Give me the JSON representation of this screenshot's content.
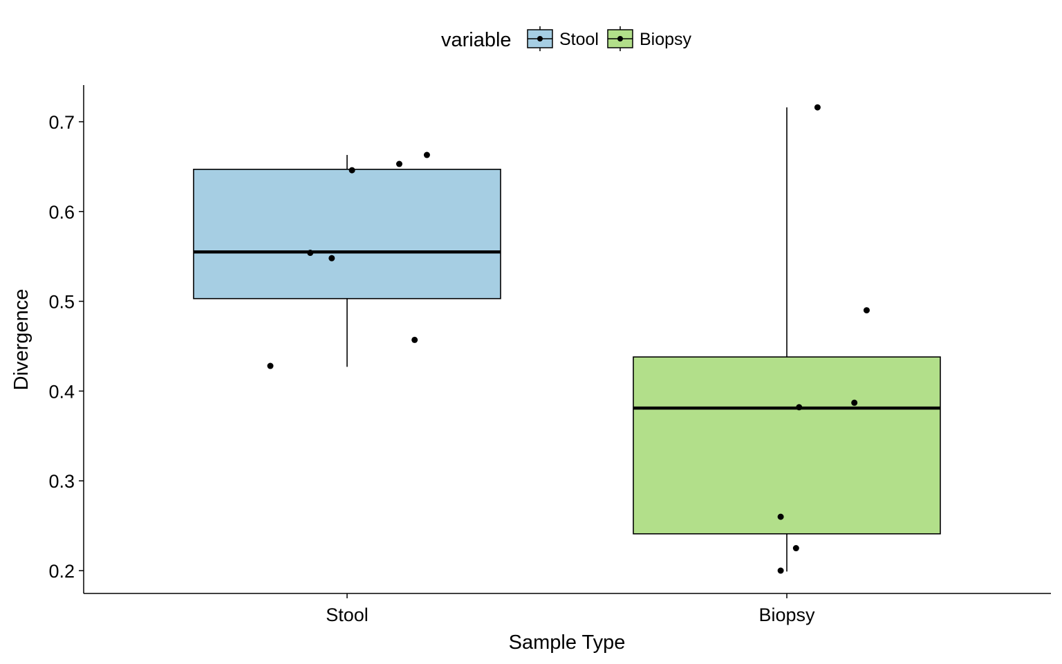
{
  "chart_data": {
    "type": "box",
    "xlabel": "Sample Type",
    "ylabel": "Divergence",
    "ylim": [
      0.175,
      0.742
    ],
    "yticks": [
      0.2,
      0.3,
      0.4,
      0.5,
      0.6,
      0.7
    ],
    "ytick_labels": [
      "0.2",
      "0.3",
      "0.4",
      "0.5",
      "0.6",
      "0.7"
    ],
    "grid": false,
    "legend": {
      "title": "variable",
      "position": "top",
      "entries": [
        {
          "label": "Stool",
          "color": "#a6cee3"
        },
        {
          "label": "Biopsy",
          "color": "#b2df8a"
        }
      ]
    },
    "categories": [
      "Stool",
      "Biopsy"
    ],
    "boxes": [
      {
        "name": "Stool",
        "color": "#a6cee3",
        "min": 0.427,
        "q1": 0.503,
        "median": 0.555,
        "q3": 0.647,
        "max": 0.663,
        "points": [
          0.428,
          0.646,
          0.554,
          0.548,
          0.653,
          0.457,
          0.663
        ],
        "jitter": [
          -0.25,
          0.016,
          -0.12,
          -0.05,
          0.17,
          0.22,
          0.26
        ]
      },
      {
        "name": "Biopsy",
        "color": "#b2df8a",
        "min": 0.199,
        "q1": 0.241,
        "median": 0.381,
        "q3": 0.438,
        "max": 0.716,
        "points": [
          0.716,
          0.49,
          0.382,
          0.387,
          0.26,
          0.225,
          0.2
        ],
        "jitter": [
          0.1,
          0.26,
          0.04,
          0.22,
          -0.02,
          0.03,
          -0.02
        ]
      }
    ]
  }
}
